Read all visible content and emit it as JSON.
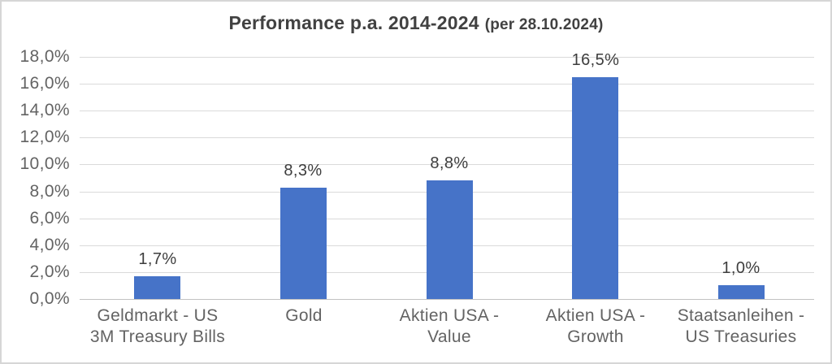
{
  "title": {
    "main": "Performance p.a. 2014-2024",
    "suffix": "(per 28.10.2024)"
  },
  "colors": {
    "bar": "#4673C8",
    "gridline": "#dadada",
    "zero_line": "#c2c2c2",
    "axis_label_text": "#636363",
    "data_label_text": "#3d3d3d",
    "title_text": "#414141",
    "border": "#d6d6d6",
    "background": "#ffffff"
  },
  "chart_data": {
    "type": "bar",
    "title": "Performance p.a. 2014-2024 (per 28.10.2024)",
    "categories": [
      "Geldmarkt - US\n3M Treasury Bills",
      "Gold",
      "Aktien USA -\nValue",
      "Aktien USA -\nGrowth",
      "Staatsanleihen -\nUS Treasuries"
    ],
    "values": [
      1.7,
      8.3,
      8.8,
      16.5,
      1.0
    ],
    "data_labels": [
      "1,7%",
      "8,3%",
      "8,8%",
      "16,5%",
      "1,0%"
    ],
    "y_tick_labels": [
      "0,0%",
      "2,0%",
      "4,0%",
      "6,0%",
      "8,0%",
      "10,0%",
      "12,0%",
      "14,0%",
      "16,0%",
      "18,0%"
    ],
    "xlabel": "",
    "ylabel": "",
    "ylim": [
      0,
      18
    ],
    "y_step": 2,
    "grid": true,
    "legend": "none",
    "bar_color": "#4673C8",
    "number_format": "decimal-comma-percent"
  }
}
